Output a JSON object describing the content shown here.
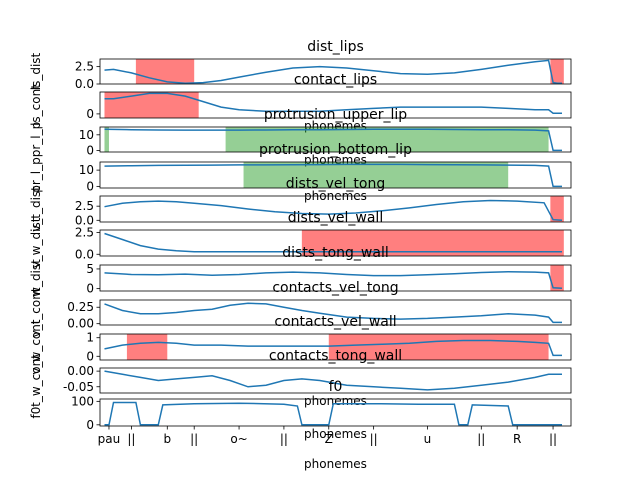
{
  "figure_xlabel": "phonemes",
  "x_tick_labels": [
    "pau",
    "||",
    "b",
    "||",
    "o~",
    "||",
    "Z",
    "||",
    "u",
    "||",
    "R",
    "||"
  ],
  "x_tick_positions": [
    0.05,
    0.3,
    0.7,
    1.0,
    1.5,
    2.0,
    2.5,
    3.0,
    3.6,
    4.2,
    4.6,
    5.0
  ],
  "xlim": [
    -0.05,
    5.2
  ],
  "series_color": "#1f77b4",
  "chart_data": [
    {
      "type": "line",
      "title": "dist_lips",
      "ylabel": "ls_dist",
      "ylim": [
        0,
        3.6
      ],
      "yticks": [
        "0.0",
        "2.5"
      ],
      "ytick_values": [
        0,
        2.5
      ],
      "xlabel": "",
      "x": [
        0,
        0.1,
        0.3,
        0.5,
        0.7,
        0.9,
        1.1,
        1.3,
        1.5,
        1.8,
        2.1,
        2.4,
        2.7,
        3.0,
        3.3,
        3.6,
        3.9,
        4.2,
        4.5,
        4.8,
        4.95,
        5.0,
        5.05,
        5.1
      ],
      "values": [
        2.0,
        2.1,
        1.6,
        0.9,
        0.3,
        0.1,
        0.2,
        0.5,
        1.0,
        1.7,
        2.3,
        2.5,
        2.3,
        1.9,
        1.5,
        1.4,
        1.6,
        2.1,
        2.7,
        3.2,
        3.4,
        0.2,
        0.1,
        0.1
      ],
      "shaded": [
        {
          "from": 0.35,
          "to": 1.0,
          "color": "#ff0000"
        },
        {
          "from": 4.97,
          "to": 5.12,
          "color": "#ff0000"
        }
      ]
    },
    {
      "type": "line",
      "title": "contact_lips",
      "ylabel": "ls_cont",
      "ylim": [
        -0.3,
        1.6
      ],
      "yticks": [
        "0"
      ],
      "ytick_values": [
        0
      ],
      "xlabel": "phonemes",
      "x": [
        0,
        0.1,
        0.3,
        0.5,
        0.7,
        0.9,
        1.1,
        1.3,
        1.5,
        1.8,
        2.1,
        2.4,
        2.7,
        3.0,
        3.3,
        3.6,
        3.9,
        4.2,
        4.5,
        4.8,
        4.95,
        5.0,
        5.1
      ],
      "values": [
        1.1,
        1.1,
        1.3,
        1.5,
        1.5,
        1.3,
        0.9,
        0.5,
        0.3,
        0.2,
        0.2,
        0.2,
        0.3,
        0.4,
        0.5,
        0.5,
        0.5,
        0.5,
        0.4,
        0.3,
        0.3,
        0.05,
        0.05
      ],
      "shaded": [
        {
          "from": 0.0,
          "to": 1.05,
          "color": "#ff0000"
        }
      ]
    },
    {
      "type": "line",
      "title": "protrusion_upper_lip",
      "ylabel": "pr_l_p",
      "ylim": [
        -1,
        15
      ],
      "yticks": [
        "0",
        "10"
      ],
      "ytick_values": [
        0,
        10
      ],
      "xlabel": "phonemes",
      "x": [
        0,
        0.3,
        0.6,
        0.9,
        1.2,
        1.5,
        1.8,
        2.1,
        2.4,
        2.7,
        3.0,
        3.3,
        3.6,
        3.9,
        4.2,
        4.5,
        4.8,
        4.95,
        5.0,
        5.1
      ],
      "values": [
        13.5,
        13.3,
        13.1,
        13.0,
        13.0,
        13.0,
        13.1,
        13.2,
        13.3,
        13.4,
        13.5,
        13.5,
        13.5,
        13.4,
        13.3,
        13.2,
        13.0,
        12.5,
        0,
        0
      ],
      "shaded": [
        {
          "from": 0.0,
          "to": 0.05,
          "color": "#2ca02c"
        },
        {
          "from": 1.35,
          "to": 4.95,
          "color": "#2ca02c"
        }
      ]
    },
    {
      "type": "line",
      "title": "protrusion_bottom_lip",
      "ylabel": "pr_l_p",
      "ylim": [
        -1,
        15
      ],
      "yticks": [
        "0",
        "10"
      ],
      "ytick_values": [
        0,
        10
      ],
      "xlabel": "phonemes",
      "x": [
        0,
        0.3,
        0.6,
        0.9,
        1.2,
        1.5,
        1.8,
        2.1,
        2.4,
        2.7,
        3.0,
        3.3,
        3.6,
        3.9,
        4.2,
        4.5,
        4.8,
        4.95,
        5.0,
        5.1
      ],
      "values": [
        12.5,
        12.7,
        12.9,
        13.0,
        13.1,
        13.2,
        13.2,
        13.3,
        13.4,
        13.5,
        13.5,
        13.5,
        13.4,
        13.3,
        13.2,
        13.1,
        12.9,
        12.5,
        0,
        0
      ],
      "shaded": [
        {
          "from": 1.55,
          "to": 4.5,
          "color": "#2ca02c"
        }
      ]
    },
    {
      "type": "line",
      "title": "dists_vel_tong",
      "ylabel": "v_t_dist",
      "ylim": [
        -0.3,
        4.3
      ],
      "yticks": [
        "0.0",
        "2.5"
      ],
      "ytick_values": [
        0,
        2.5
      ],
      "xlabel": "",
      "x": [
        0,
        0.2,
        0.4,
        0.6,
        0.8,
        1.0,
        1.3,
        1.6,
        1.9,
        2.2,
        2.5,
        2.8,
        3.1,
        3.4,
        3.7,
        4.0,
        4.3,
        4.6,
        4.9,
        5.0,
        5.1
      ],
      "values": [
        2.4,
        3.0,
        3.3,
        3.4,
        3.3,
        3.0,
        2.6,
        2.0,
        1.5,
        1.2,
        1.1,
        1.3,
        1.7,
        2.2,
        2.8,
        3.3,
        3.5,
        3.4,
        3.1,
        0.1,
        0.0
      ],
      "shaded": [
        {
          "from": 4.97,
          "to": 5.12,
          "color": "#ff0000"
        }
      ]
    },
    {
      "type": "line",
      "title": "dists_vel_wall",
      "ylabel": "v_w_dist",
      "ylim": [
        -0.2,
        2.8
      ],
      "yticks": [
        "0.0",
        "2.5"
      ],
      "ytick_values": [
        0,
        2.5
      ],
      "xlabel": "",
      "x": [
        0,
        0.2,
        0.4,
        0.6,
        0.8,
        1.0,
        1.3,
        1.6,
        1.9,
        2.2,
        2.5,
        2.8,
        3.1,
        3.4,
        3.7,
        4.0,
        4.3,
        4.6,
        4.9,
        5.0,
        5.1
      ],
      "values": [
        2.4,
        1.7,
        1.0,
        0.6,
        0.4,
        0.3,
        0.3,
        0.3,
        0.3,
        0.3,
        0.3,
        0.3,
        0.3,
        0.3,
        0.3,
        0.3,
        0.3,
        0.3,
        0.3,
        0.3,
        0.3
      ],
      "shaded": [
        {
          "from": 2.2,
          "to": 5.12,
          "color": "#ff0000"
        }
      ]
    },
    {
      "type": "line",
      "title": "dists_tong_wall",
      "ylabel": "w_dist",
      "ylim": [
        -0.6,
        6.0
      ],
      "yticks": [
        "0",
        "5"
      ],
      "ytick_values": [
        0,
        5
      ],
      "xlabel": "",
      "x": [
        0,
        0.3,
        0.6,
        0.9,
        1.2,
        1.5,
        1.8,
        2.1,
        2.4,
        2.7,
        3.0,
        3.3,
        3.6,
        3.9,
        4.2,
        4.5,
        4.8,
        4.95,
        5.0,
        5.1
      ],
      "values": [
        4.0,
        3.6,
        3.5,
        3.7,
        3.4,
        3.6,
        4.0,
        4.2,
        4.0,
        3.6,
        3.3,
        3.3,
        3.5,
        3.8,
        4.1,
        4.3,
        4.2,
        4.0,
        0.2,
        0.1
      ],
      "shaded": [
        {
          "from": 4.97,
          "to": 5.12,
          "color": "#ff0000"
        }
      ]
    },
    {
      "type": "line",
      "title": "contacts_vel_tong",
      "ylabel": "v_t_cont",
      "ylim": [
        -0.02,
        0.36
      ],
      "yticks": [
        "0.00",
        "0.25"
      ],
      "ytick_values": [
        0,
        0.25
      ],
      "xlabel": "",
      "x": [
        0,
        0.2,
        0.4,
        0.6,
        0.8,
        1.0,
        1.2,
        1.4,
        1.6,
        1.8,
        2.0,
        2.2,
        2.4,
        2.7,
        3.0,
        3.3,
        3.6,
        3.9,
        4.2,
        4.5,
        4.8,
        4.95,
        5.0,
        5.1
      ],
      "values": [
        0.3,
        0.2,
        0.15,
        0.15,
        0.17,
        0.2,
        0.22,
        0.28,
        0.31,
        0.3,
        0.25,
        0.2,
        0.16,
        0.1,
        0.08,
        0.07,
        0.08,
        0.1,
        0.12,
        0.15,
        0.13,
        0.1,
        0.02,
        0.02
      ],
      "shaded": []
    },
    {
      "type": "line",
      "title": "contacts_vel_wall",
      "ylabel": "v_w_cont",
      "ylim": [
        -0.2,
        1.2
      ],
      "yticks": [
        "0",
        "1"
      ],
      "ytick_values": [
        0,
        1
      ],
      "xlabel": "",
      "x": [
        0,
        0.2,
        0.4,
        0.6,
        0.8,
        1.0,
        1.3,
        1.6,
        1.9,
        2.2,
        2.5,
        2.8,
        3.1,
        3.4,
        3.7,
        4.0,
        4.3,
        4.6,
        4.8,
        4.95,
        5.0,
        5.1
      ],
      "values": [
        0.4,
        0.6,
        0.7,
        0.75,
        0.7,
        0.6,
        0.6,
        0.55,
        0.55,
        0.55,
        0.55,
        0.6,
        0.65,
        0.7,
        0.8,
        0.85,
        0.85,
        0.8,
        0.75,
        0.7,
        0.05,
        0.05
      ],
      "shaded": [
        {
          "from": 0.25,
          "to": 0.7,
          "color": "#ff0000"
        },
        {
          "from": 2.5,
          "to": 4.95,
          "color": "#ff0000"
        }
      ]
    },
    {
      "type": "line",
      "title": "contacts_tong_wall",
      "ylabel": "t_w_cont",
      "ylim": [
        -0.07,
        0.01
      ],
      "yticks": [
        "0.00",
        "-0.05"
      ],
      "ytick_values": [
        0,
        -0.05
      ],
      "xlabel": "phonemes",
      "x": [
        0,
        0.2,
        0.4,
        0.6,
        0.8,
        1.0,
        1.2,
        1.4,
        1.6,
        1.8,
        2.0,
        2.2,
        2.4,
        2.7,
        3.0,
        3.3,
        3.6,
        3.9,
        4.2,
        4.5,
        4.8,
        4.95,
        5.1
      ],
      "values": [
        0.0,
        -0.01,
        -0.02,
        -0.03,
        -0.025,
        -0.02,
        -0.015,
        -0.03,
        -0.05,
        -0.045,
        -0.03,
        -0.025,
        -0.03,
        -0.045,
        -0.05,
        -0.055,
        -0.06,
        -0.055,
        -0.045,
        -0.035,
        -0.02,
        -0.01,
        -0.01
      ],
      "shaded": []
    },
    {
      "type": "line",
      "title": "f0",
      "ylabel": "f0",
      "ylim": [
        -5,
        110
      ],
      "yticks": [
        "0",
        "100"
      ],
      "ytick_values": [
        0,
        100
      ],
      "xlabel": "phonemes",
      "x": [
        0,
        0.05,
        0.1,
        0.35,
        0.4,
        0.6,
        0.65,
        1.0,
        1.5,
        2.0,
        2.15,
        2.2,
        2.5,
        2.55,
        3.0,
        3.5,
        3.9,
        3.95,
        4.05,
        4.1,
        4.5,
        4.55,
        5.1
      ],
      "values": [
        0,
        0,
        95,
        95,
        0,
        0,
        85,
        90,
        92,
        88,
        80,
        0,
        0,
        90,
        90,
        88,
        88,
        0,
        0,
        85,
        80,
        0,
        0
      ],
      "shaded": []
    }
  ]
}
